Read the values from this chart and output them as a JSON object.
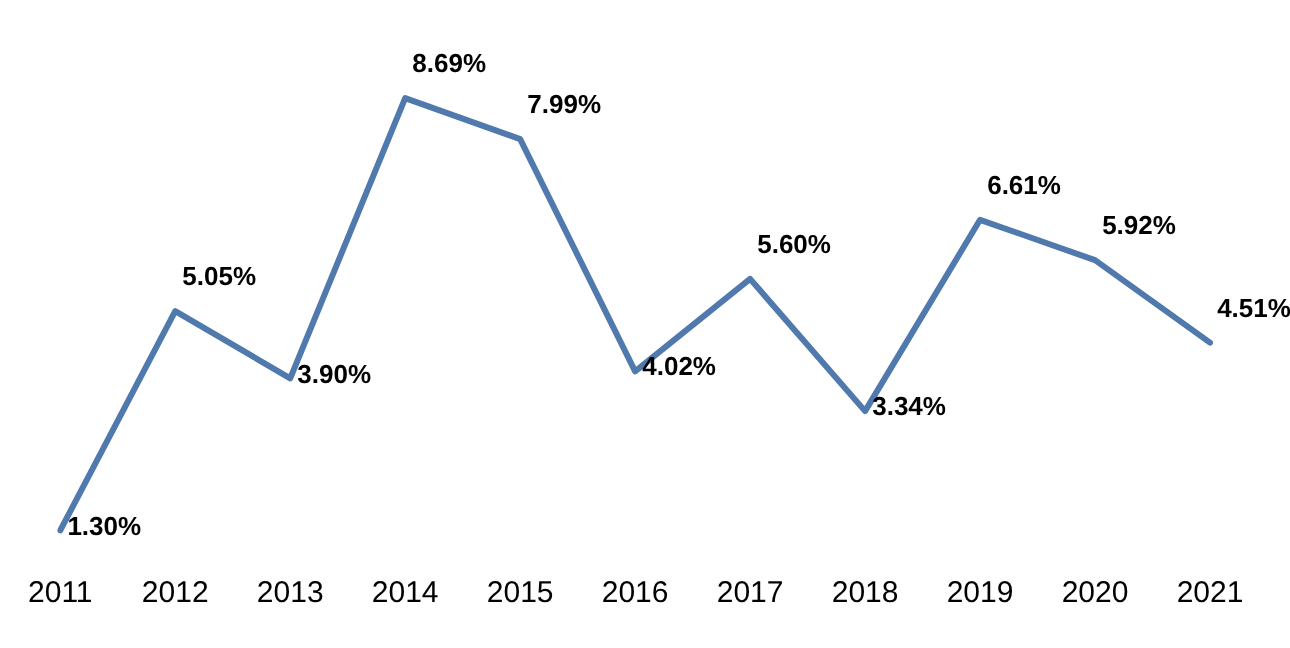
{
  "chart_data": {
    "type": "line",
    "categories": [
      "2011",
      "2012",
      "2013",
      "2014",
      "2015",
      "2016",
      "2017",
      "2018",
      "2019",
      "2020",
      "2021"
    ],
    "series": [
      {
        "color": "#5079ad",
        "values": [
          1.3,
          5.05,
          3.9,
          8.69,
          7.99,
          4.02,
          5.6,
          3.34,
          6.61,
          5.92,
          4.51
        ],
        "value_labels": [
          "1.30%",
          "5.05%",
          "3.90%",
          "8.69%",
          "7.99%",
          "4.02%",
          "5.60%",
          "3.34%",
          "6.61%",
          "5.92%",
          "4.51%"
        ]
      }
    ],
    "grid": false,
    "legend": false,
    "marker": "none",
    "line_style": "solid"
  }
}
